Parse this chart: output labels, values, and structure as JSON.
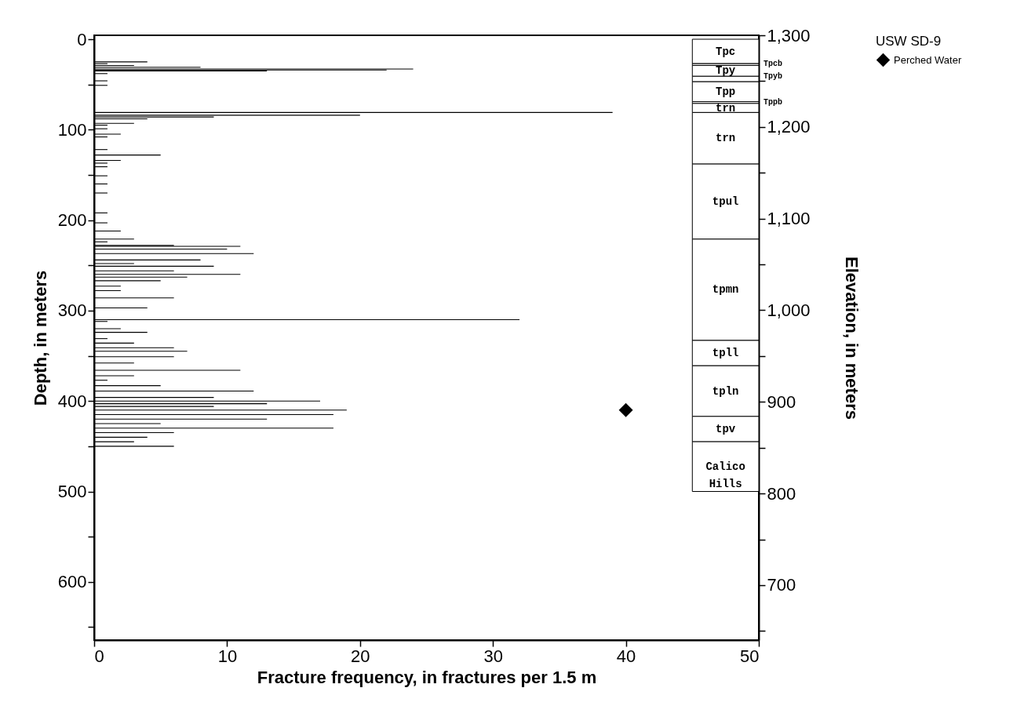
{
  "chart_data": {
    "type": "bar",
    "orientation": "horizontal",
    "xlabel": "Fracture frequency, in fractures per 1.5 m",
    "ylabel": "Depth, in meters",
    "y2label": "Elevation, in meters",
    "legend_title": "USW SD-9",
    "legend": "top right",
    "xlim": [
      0,
      50
    ],
    "xticks": [
      0,
      10,
      20,
      30,
      40,
      50
    ],
    "ylim": [
      660,
      0
    ],
    "yticks": [
      0,
      {
        "value": 50,
        "label": null
      },
      100,
      {
        "value": 150,
        "label": null
      },
      200,
      {
        "value": 250,
        "label": null
      },
      300,
      {
        "value": 350,
        "label": null
      },
      400,
      {
        "value": 450,
        "label": null
      },
      500,
      {
        "value": 550,
        "label": null
      },
      600,
      {
        "value": 650,
        "label": null
      }
    ],
    "y2lim": [
      640,
      1300
    ],
    "y2ticks": [
      {
        "value": 1300,
        "label": "1,300"
      },
      {
        "value": 1250,
        "label": null
      },
      {
        "value": 1200,
        "label": "1,200"
      },
      {
        "value": 1150,
        "label": null
      },
      {
        "value": 1100,
        "label": "1,100"
      },
      {
        "value": 1050,
        "label": null
      },
      {
        "value": 1000,
        "label": "1,000"
      },
      {
        "value": 950,
        "label": null
      },
      {
        "value": 900,
        "label": "900"
      },
      {
        "value": 850,
        "label": null
      },
      {
        "value": 800,
        "label": "800"
      },
      {
        "value": 750,
        "label": null
      },
      {
        "value": 700,
        "label": "700"
      },
      {
        "value": 650,
        "label": null
      }
    ],
    "series": [
      {
        "color": "#000000",
        "x": [
          25,
          27,
          29,
          31,
          33,
          34,
          35,
          38,
          46,
          51,
          81,
          84,
          86,
          88,
          93,
          95,
          99,
          105,
          108,
          122,
          128,
          134,
          137,
          141,
          151,
          160,
          170,
          192,
          203,
          212,
          221,
          224,
          228,
          229,
          232,
          237,
          244,
          248,
          251,
          256,
          260,
          263,
          267,
          273,
          278,
          286,
          297,
          310,
          312,
          320,
          324,
          331,
          336,
          341,
          345,
          351,
          358,
          366,
          372,
          377,
          383,
          389,
          396,
          400,
          403,
          406,
          410,
          415,
          420,
          425,
          430,
          435,
          440,
          445,
          450
        ],
        "values": [
          4,
          1,
          3,
          8,
          24,
          22,
          13,
          1,
          1,
          1,
          39,
          20,
          9,
          4,
          3,
          1,
          1,
          2,
          1,
          1,
          5,
          2,
          1,
          1,
          1,
          1,
          1,
          1,
          1,
          2,
          3,
          1,
          6,
          11,
          10,
          12,
          8,
          3,
          9,
          6,
          11,
          7,
          5,
          2,
          2,
          6,
          4,
          32,
          1,
          2,
          4,
          1,
          3,
          6,
          7,
          6,
          3,
          11,
          3,
          1,
          5,
          12,
          9,
          17,
          13,
          9,
          19,
          18,
          13,
          5,
          18,
          6,
          4,
          3,
          6
        ]
      },
      {
        "type": "scatter",
        "name": "Perched Water",
        "color": "#000000",
        "marker": "diamond",
        "x": [
          410
        ],
        "values": [
          40
        ]
      }
    ],
    "bands": [
      {
        "axis": "y",
        "from": 0,
        "to": 27,
        "label": "Tpc"
      },
      {
        "axis": "y",
        "from": 27,
        "to": 29,
        "label": "Tpcb"
      },
      {
        "axis": "y",
        "from": 29,
        "to": 41,
        "label": "Tpy"
      },
      {
        "axis": "y",
        "from": 41,
        "to": 47,
        "label": "Tpyb"
      },
      {
        "axis": "y",
        "from": 47,
        "to": 69,
        "label": "Tpp"
      },
      {
        "axis": "y",
        "from": 69,
        "to": 71,
        "label": "Tppb"
      },
      {
        "axis": "y",
        "from": 71,
        "to": 81,
        "label": "trn"
      },
      {
        "axis": "y",
        "from": 81,
        "to": 138,
        "label": "trn"
      },
      {
        "axis": "y",
        "from": 138,
        "to": 221,
        "label": "tpul"
      },
      {
        "axis": "y",
        "from": 221,
        "to": 333,
        "label": "tpmn"
      },
      {
        "axis": "y",
        "from": 333,
        "to": 361,
        "label": "tpll"
      },
      {
        "axis": "y",
        "from": 361,
        "to": 417,
        "label": "tpln"
      },
      {
        "axis": "y",
        "from": 417,
        "to": 445,
        "label": "tpv"
      },
      {
        "axis": "y",
        "from": 445,
        "to": 500,
        "label": "Calico Hills"
      }
    ],
    "grid": false
  }
}
